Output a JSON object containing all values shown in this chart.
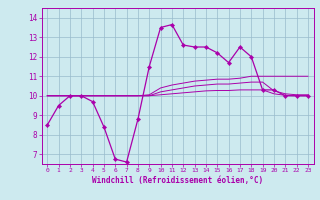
{
  "title": "",
  "xlabel": "Windchill (Refroidissement éolien,°C)",
  "xlim": [
    -0.5,
    23.5
  ],
  "ylim": [
    6.5,
    14.5
  ],
  "xticks": [
    0,
    1,
    2,
    3,
    4,
    5,
    6,
    7,
    8,
    9,
    10,
    11,
    12,
    13,
    14,
    15,
    16,
    17,
    18,
    19,
    20,
    21,
    22,
    23
  ],
  "yticks": [
    7,
    8,
    9,
    10,
    11,
    12,
    13,
    14
  ],
  "bg_color": "#cdeaef",
  "line_color": "#aa00aa",
  "grid_color": "#99bbcc",
  "series": [
    [
      8.5,
      9.5,
      10.0,
      10.0,
      9.7,
      8.4,
      6.75,
      6.6,
      8.8,
      11.5,
      13.5,
      13.65,
      12.6,
      12.5,
      12.5,
      12.2,
      11.7,
      12.5,
      12.0,
      10.3,
      10.3,
      10.0,
      10.0,
      10.0
    ],
    [
      10.0,
      10.0,
      10.0,
      10.0,
      10.0,
      10.0,
      10.0,
      10.0,
      10.0,
      10.05,
      10.4,
      10.55,
      10.65,
      10.75,
      10.8,
      10.85,
      10.85,
      10.9,
      11.0,
      11.0,
      11.0,
      11.0,
      11.0,
      11.0
    ],
    [
      10.0,
      10.0,
      10.0,
      10.0,
      10.0,
      10.0,
      10.0,
      10.0,
      10.0,
      10.0,
      10.2,
      10.3,
      10.4,
      10.5,
      10.55,
      10.6,
      10.6,
      10.65,
      10.7,
      10.7,
      10.25,
      10.1,
      10.05,
      10.05
    ],
    [
      10.0,
      10.0,
      10.0,
      10.0,
      10.0,
      10.0,
      10.0,
      10.0,
      10.0,
      10.0,
      10.05,
      10.1,
      10.15,
      10.2,
      10.25,
      10.27,
      10.27,
      10.3,
      10.3,
      10.3,
      10.1,
      10.02,
      10.0,
      10.0
    ]
  ]
}
